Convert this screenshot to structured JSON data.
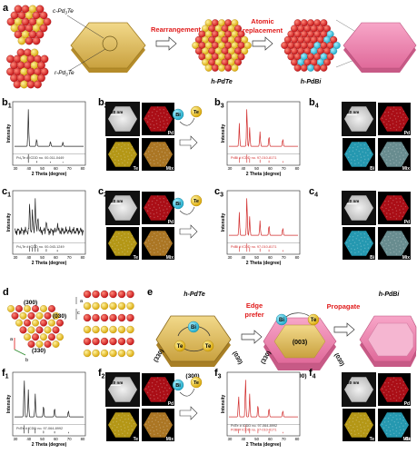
{
  "panels": {
    "a": {
      "label": "a",
      "structure_labels": [
        "c-Pd",
        "3",
        "Te",
        "r-Pd",
        "3",
        "Te"
      ],
      "step1": "Rearrangement",
      "step2_line1": "Atomic",
      "step2_line2": "replacement",
      "product1": "h-PdTe",
      "product2": "h-PdBi"
    },
    "b": {
      "b1": {
        "label": "b",
        "sub": "1",
        "legend": "Pd₃Te # ICDD no. 00-011-0449",
        "xlabel": "2 Theta (degree)",
        "ylabel": "Intensity"
      },
      "b2": {
        "label": "b",
        "sub": "2",
        "scale": "20 nm",
        "maps": [
          "Pd",
          "Te",
          "Mix"
        ]
      },
      "arrow": {
        "bi": "Bi",
        "te": "Te"
      },
      "b3": {
        "label": "b",
        "sub": "3",
        "legend": "PdBi # ICDD no. 97-010-8171",
        "xlabel": "2 Theta (degree)",
        "ylabel": "Intensity"
      },
      "b4": {
        "label": "b",
        "sub": "4",
        "scale": "20 nm",
        "maps": [
          "Pd",
          "Bi",
          "Mix"
        ]
      }
    },
    "c": {
      "c1": {
        "label": "c",
        "sub": "1",
        "legend": "Pd₃Te # ICDD no. 00-043-1249",
        "xlabel": "2 Theta (degree)",
        "ylabel": "Intensity"
      },
      "c2": {
        "label": "c",
        "sub": "2",
        "maps": [
          "Pd",
          "Te",
          "Mix"
        ]
      },
      "arrow": {
        "bi": "Bi",
        "te": "Te"
      },
      "c3": {
        "label": "c",
        "sub": "3",
        "legend": "PdBi # ICDD no. 97-010-8171",
        "xlabel": "2 Theta (degree)",
        "ylabel": "Intensity"
      },
      "c4": {
        "label": "c",
        "sub": "4",
        "scale": "20 nm",
        "maps": [
          "Pd",
          "Bi",
          "Mix"
        ]
      }
    },
    "d": {
      "label": "d",
      "facets": [
        "(300)",
        "(030)",
        "(330)"
      ],
      "axes": [
        "a",
        "b",
        "c"
      ]
    },
    "e": {
      "label": "e",
      "start": "h-PdTe",
      "edge_line1": "Edge",
      "edge_line2": "prefer",
      "propagate": "Propagate",
      "end": "h-PdBi",
      "bi": "Bi",
      "te": "Te",
      "facets_left": [
        "(330)",
        "(030)",
        "(300)"
      ],
      "facets_mid": [
        "(003)",
        "(330)",
        "(030)",
        "(300)"
      ]
    },
    "f": {
      "f1": {
        "label": "f",
        "sub": "1",
        "legend": "PdTe # ICDD no. 97-064-8992",
        "xlabel": "2 Theta (degree)",
        "ylabel": "Intensity"
      },
      "f2": {
        "label": "f",
        "sub": "2",
        "maps": [
          "Pd",
          "Te",
          "Mix"
        ]
      },
      "arrow": {
        "bi": "Bi",
        "te": "Te"
      },
      "f3": {
        "label": "f",
        "sub": "3",
        "legend1": "PdTe # ICDD no. 97-064-8992",
        "legend2": "PdBi # ICDD no. 97-010-8171",
        "xlabel": "2 Theta (degree)",
        "ylabel": "Intensity"
      },
      "f4": {
        "label": "f",
        "sub": "4",
        "scale": "20 nm",
        "maps": [
          "Pd",
          "Te",
          "Bi",
          "Mix"
        ]
      }
    },
    "ticks": [
      "30",
      "40",
      "50",
      "60",
      "70",
      "80"
    ]
  },
  "colors": {
    "red": "#e01b1b",
    "pd": "#d8101a",
    "te": "#e6bd1e",
    "bi": "#2fc3e0",
    "pink": "#f06aa2",
    "gold": "#e9c46a"
  }
}
